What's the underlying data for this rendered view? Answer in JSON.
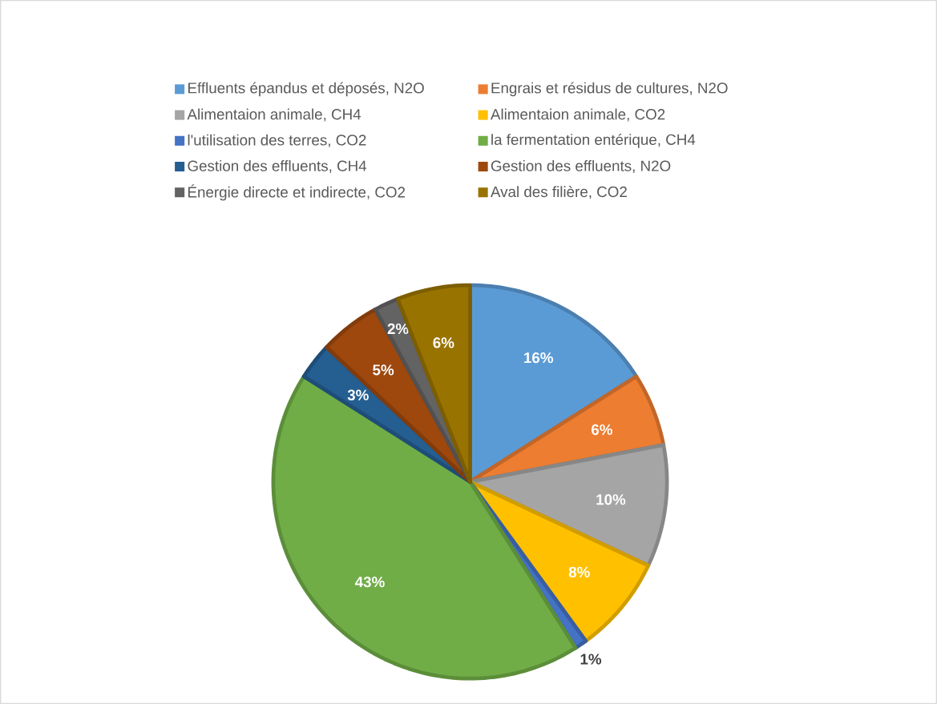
{
  "chart_data": {
    "type": "pie",
    "categories": [
      "Effluents épandus et déposés, N2O",
      "Engrais et résidus de cultures, N2O",
      "Alimentaion animale, CH4",
      "Alimentaion animale, CO2",
      "l'utilisation des terres, CO2",
      "la fermentation entérique, CH4",
      "Gestion des effluents, CH4",
      "Gestion des effluents, N2O",
      "Énergie directe et indirecte, CO2",
      "Aval des filière, CO2"
    ],
    "values": [
      16,
      6,
      10,
      8,
      1,
      43,
      3,
      5,
      2,
      6
    ],
    "value_labels": [
      "16%",
      "6%",
      "10%",
      "8%",
      "1%",
      "43%",
      "3%",
      "5%",
      "2%",
      "6%"
    ],
    "colors": [
      "#5b9bd5",
      "#ed7d31",
      "#a5a5a5",
      "#ffc000",
      "#4472c4",
      "#70ad47",
      "#255e91",
      "#9e480e",
      "#636363",
      "#997300"
    ],
    "legend": "top"
  }
}
